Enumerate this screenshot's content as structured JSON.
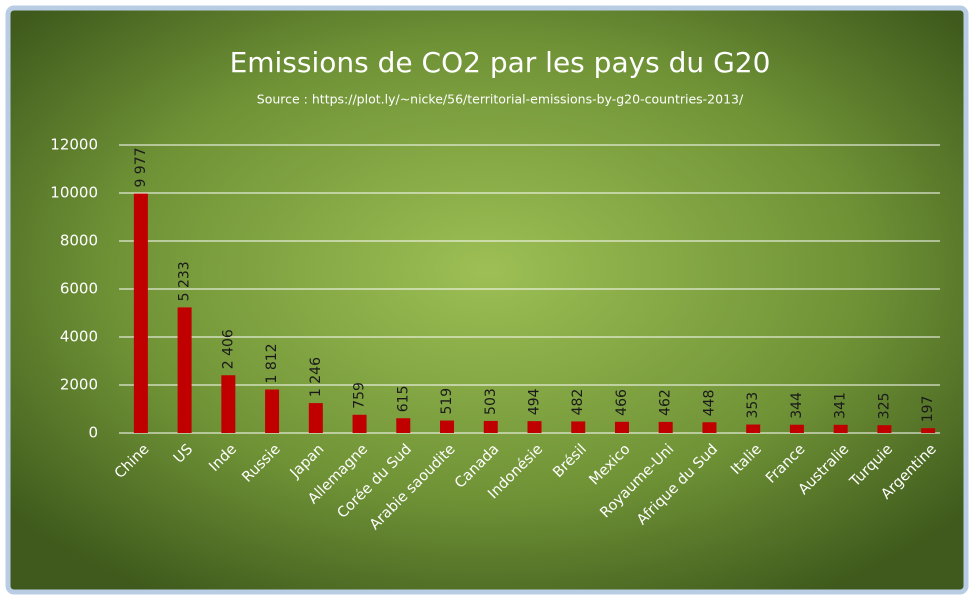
{
  "chart_data": {
    "type": "bar",
    "title": "Emissions de CO2 par les pays du G20",
    "subtitle": "Source : https://plot.ly/~nicke/56/territorial-emissions-by-g20-countries-2013/",
    "categories": [
      "Chine",
      "US",
      "Inde",
      "Russie",
      "Japan",
      "Allemagne",
      "Corée du Sud",
      "Arabie saoudite",
      "Canada",
      "Indonésie",
      "Brésil",
      "Mexico",
      "Royaume-Uni",
      "Afrique du Sud",
      "Italie",
      "France",
      "Australie",
      "Turquie",
      "Argentine"
    ],
    "values": [
      9977,
      5233,
      2406,
      1812,
      1246,
      759,
      615,
      519,
      503,
      494,
      482,
      466,
      462,
      448,
      353,
      344,
      341,
      325,
      197
    ],
    "value_labels": [
      "9 977",
      "5 233",
      "2 406",
      "1 812",
      "1 246",
      "759",
      "615",
      "519",
      "503",
      "494",
      "482",
      "466",
      "462",
      "448",
      "353",
      "344",
      "341",
      "325",
      "197"
    ],
    "color": "#c00000",
    "ylim": [
      0,
      12000
    ],
    "yticks": [
      0,
      2000,
      4000,
      6000,
      8000,
      10000,
      12000
    ],
    "grid": true
  }
}
